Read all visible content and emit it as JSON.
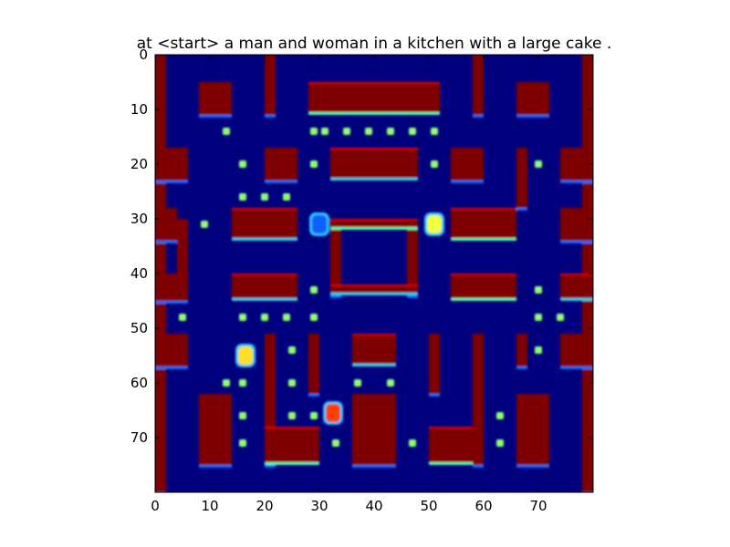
{
  "chart_data": {
    "type": "heatmap",
    "title": "at <start> a man and woman in a kitchen with a large cake .",
    "xlabel": "",
    "ylabel": "",
    "xlim": [
      0,
      80
    ],
    "ylim": [
      80,
      0
    ],
    "x_ticks": [
      0,
      10,
      20,
      30,
      40,
      50,
      60,
      70
    ],
    "y_ticks": [
      0,
      10,
      20,
      30,
      40,
      50,
      60,
      70
    ],
    "colormap": "jet",
    "colors": {
      "background": "#00007f",
      "wall": "#7f0000",
      "wall_edge_red": "#e00000",
      "edge_cyan": "#3ad0f0",
      "edge_teal": "#60ffb0",
      "edge_blue": "#0070ff",
      "pellet": "#8fff70",
      "orange": "#ff9000",
      "yellow": "#f0ff10"
    },
    "walls": [
      [
        0,
        0,
        2,
        80
      ],
      [
        78,
        0,
        80,
        80
      ],
      [
        8,
        5,
        14,
        11
      ],
      [
        20,
        0,
        22,
        11
      ],
      [
        28,
        5,
        52,
        11
      ],
      [
        58,
        0,
        60,
        11
      ],
      [
        66,
        5,
        72,
        11
      ],
      [
        0,
        17,
        6,
        23
      ],
      [
        20,
        17,
        26,
        23
      ],
      [
        32,
        17,
        48,
        23
      ],
      [
        54,
        17,
        60,
        23
      ],
      [
        66,
        17,
        68,
        28
      ],
      [
        74,
        17,
        80,
        23
      ],
      [
        0,
        28,
        4,
        34
      ],
      [
        4,
        30,
        6,
        45
      ],
      [
        14,
        28,
        26,
        34
      ],
      [
        32,
        30,
        34,
        44
      ],
      [
        46,
        30,
        48,
        44
      ],
      [
        32,
        30,
        48,
        32
      ],
      [
        32,
        42,
        48,
        44
      ],
      [
        54,
        28,
        66,
        34
      ],
      [
        74,
        28,
        80,
        34
      ],
      [
        0,
        40,
        4,
        45
      ],
      [
        14,
        40,
        26,
        45
      ],
      [
        54,
        40,
        66,
        45
      ],
      [
        74,
        40,
        80,
        45
      ],
      [
        0,
        51,
        6,
        57
      ],
      [
        20,
        51,
        22,
        68
      ],
      [
        28,
        51,
        30,
        62
      ],
      [
        36,
        51,
        44,
        57
      ],
      [
        50,
        51,
        52,
        62
      ],
      [
        58,
        51,
        60,
        68
      ],
      [
        66,
        51,
        68,
        57
      ],
      [
        74,
        51,
        80,
        57
      ],
      [
        8,
        62,
        14,
        75
      ],
      [
        20,
        62,
        22,
        75
      ],
      [
        20,
        68,
        30,
        75
      ],
      [
        36,
        62,
        44,
        75
      ],
      [
        50,
        68,
        60,
        75
      ],
      [
        58,
        62,
        60,
        75
      ],
      [
        66,
        62,
        72,
        75
      ]
    ],
    "pellets": [
      [
        13,
        14
      ],
      [
        16,
        20
      ],
      [
        29,
        14
      ],
      [
        31,
        14
      ],
      [
        35,
        14
      ],
      [
        39,
        14
      ],
      [
        43,
        14
      ],
      [
        47,
        14
      ],
      [
        51,
        14
      ],
      [
        29,
        20
      ],
      [
        51,
        20
      ],
      [
        70,
        20
      ],
      [
        16,
        26
      ],
      [
        20,
        26
      ],
      [
        24,
        26
      ],
      [
        9,
        31
      ],
      [
        29,
        43
      ],
      [
        70,
        43
      ],
      [
        5,
        48
      ],
      [
        16,
        48
      ],
      [
        20,
        48
      ],
      [
        24,
        48
      ],
      [
        29,
        48
      ],
      [
        70,
        48
      ],
      [
        74,
        48
      ],
      [
        25,
        54
      ],
      [
        70,
        54
      ],
      [
        13,
        60
      ],
      [
        16,
        60
      ],
      [
        25,
        60
      ],
      [
        37,
        60
      ],
      [
        43,
        60
      ],
      [
        16,
        66
      ],
      [
        25,
        66
      ],
      [
        29,
        66
      ],
      [
        63,
        66
      ],
      [
        16,
        71
      ],
      [
        33,
        71
      ],
      [
        47,
        71
      ],
      [
        63,
        71
      ]
    ],
    "sprites": [
      {
        "name": "player",
        "x": 16.5,
        "y": 55,
        "color": "#ffe020"
      },
      {
        "name": "ghost-center",
        "x": 30,
        "y": 31,
        "color": "#1060ff"
      },
      {
        "name": "ghost-right",
        "x": 51,
        "y": 31,
        "color": "#f0ff40"
      },
      {
        "name": "ghost-bottom",
        "x": 32.5,
        "y": 65.5,
        "color": "#ff4000"
      }
    ]
  }
}
